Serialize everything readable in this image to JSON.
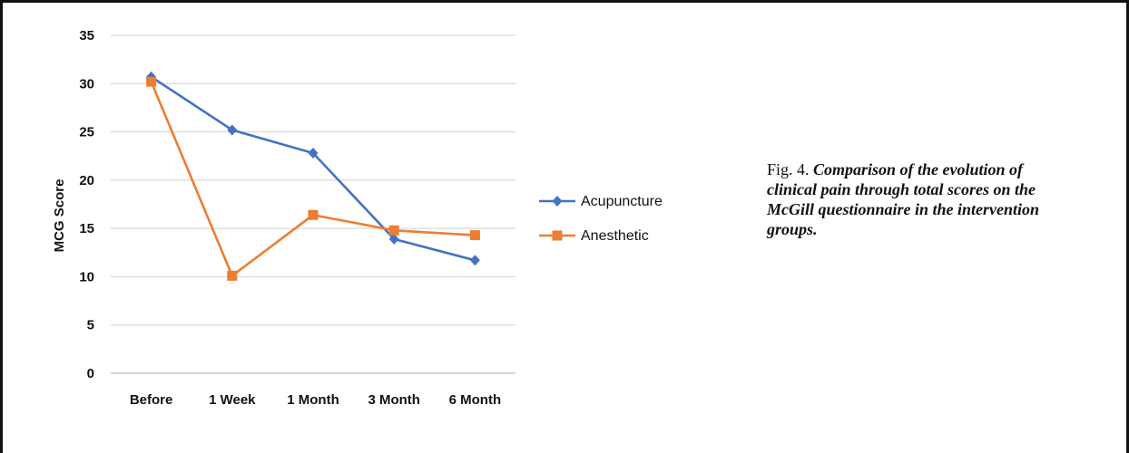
{
  "caption": {
    "label": "Fig. 4.",
    "text": "Comparison of the evolution of clinical pain through total scores on the McGill questionnaire in the intervention groups."
  },
  "chart_data": {
    "type": "line",
    "title": "",
    "xlabel": "",
    "ylabel": "MCG Score",
    "categories": [
      "Before",
      "1 Week",
      "1 Month",
      "3 Month",
      "6 Month"
    ],
    "ylim": [
      0,
      35
    ],
    "yticks": [
      0,
      5,
      10,
      15,
      20,
      25,
      30,
      35
    ],
    "grid": true,
    "legend_position": "right",
    "series": [
      {
        "name": "Acupuncture",
        "color": "#4472C4",
        "marker": "diamond",
        "values": [
          30.7,
          25.2,
          22.8,
          13.9,
          11.7
        ]
      },
      {
        "name": "Anesthetic",
        "color": "#ED7D31",
        "marker": "square",
        "values": [
          30.2,
          10.1,
          16.4,
          14.8,
          14.3
        ]
      }
    ]
  }
}
